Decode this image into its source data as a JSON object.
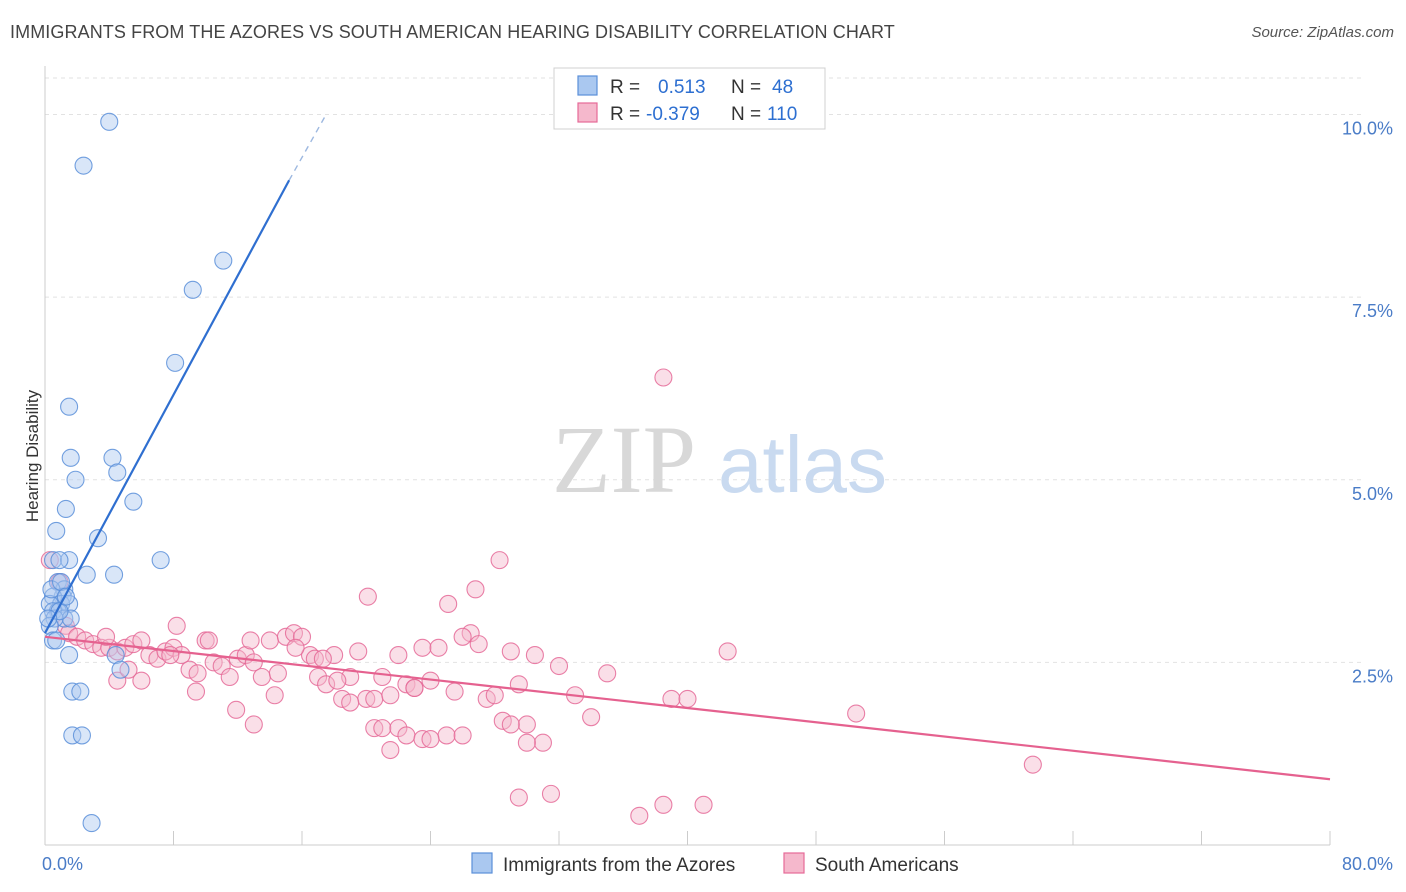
{
  "title": "IMMIGRANTS FROM THE AZORES VS SOUTH AMERICAN HEARING DISABILITY CORRELATION CHART",
  "source": "Source: ZipAtlas.com",
  "watermark": {
    "zip": "ZIP",
    "atlas": "atlas"
  },
  "colors": {
    "blue": "#5b8fd9",
    "blue_fill": "#aac8f0",
    "pink": "#e56a98",
    "pink_fill": "#f5b8cc",
    "tick": "#4a7cc7"
  },
  "legend": {
    "rows": [
      {
        "r_label": "R =",
        "r_value": "0.513",
        "n_label": "N =",
        "n_value": "48"
      },
      {
        "r_label": "R =",
        "r_value": "-0.379",
        "n_label": "N =",
        "n_value": "110"
      }
    ]
  },
  "bottom_legend": [
    "Immigrants from the Azores",
    "South Americans"
  ],
  "chart_data": {
    "type": "scatter",
    "title": "IMMIGRANTS FROM THE AZORES VS SOUTH AMERICAN HEARING DISABILITY CORRELATION CHART",
    "xlabel": "",
    "ylabel": "Hearing Disability",
    "xlim": [
      0,
      80
    ],
    "ylim": [
      0,
      10.5
    ],
    "x_tick_labels": [
      "0.0%",
      "80.0%"
    ],
    "y_ticks": [
      2.5,
      5.0,
      7.5,
      10.0
    ],
    "y_tick_labels": [
      "2.5%",
      "5.0%",
      "7.5%",
      "10.0%"
    ],
    "grid": "horizontal dashed",
    "legend_position": "top-center",
    "series": [
      {
        "name": "Immigrants from the Azores",
        "color": "#5b8fd9",
        "trend": {
          "x": [
            0.0,
            15.2
          ],
          "y": [
            2.9,
            9.1
          ],
          "dashed_to": [
            17.5,
            10.0
          ]
        },
        "points": [
          [
            4.0,
            9.9
          ],
          [
            2.4,
            9.3
          ],
          [
            11.1,
            8.0
          ],
          [
            9.2,
            7.6
          ],
          [
            8.1,
            6.6
          ],
          [
            1.5,
            6.0
          ],
          [
            1.6,
            5.3
          ],
          [
            4.2,
            5.3
          ],
          [
            1.9,
            5.0
          ],
          [
            4.5,
            5.1
          ],
          [
            1.3,
            4.6
          ],
          [
            5.5,
            4.7
          ],
          [
            0.7,
            4.3
          ],
          [
            3.3,
            4.2
          ],
          [
            7.2,
            3.9
          ],
          [
            0.5,
            3.9
          ],
          [
            1.5,
            3.9
          ],
          [
            0.9,
            3.9
          ],
          [
            2.6,
            3.7
          ],
          [
            4.3,
            3.7
          ],
          [
            0.8,
            3.6
          ],
          [
            1.2,
            3.5
          ],
          [
            1.1,
            3.4
          ],
          [
            0.5,
            3.4
          ],
          [
            1.0,
            3.3
          ],
          [
            1.5,
            3.3
          ],
          [
            0.3,
            3.3
          ],
          [
            0.8,
            3.2
          ],
          [
            0.5,
            3.2
          ],
          [
            1.2,
            3.1
          ],
          [
            1.6,
            3.1
          ],
          [
            0.6,
            3.1
          ],
          [
            0.9,
            3.2
          ],
          [
            0.3,
            3.0
          ],
          [
            0.5,
            2.8
          ],
          [
            0.7,
            2.8
          ],
          [
            4.4,
            2.6
          ],
          [
            1.5,
            2.6
          ],
          [
            4.7,
            2.4
          ],
          [
            1.7,
            2.1
          ],
          [
            2.2,
            2.1
          ],
          [
            1.7,
            1.5
          ],
          [
            2.3,
            1.5
          ],
          [
            2.9,
            0.3
          ],
          [
            0.4,
            3.5
          ],
          [
            0.2,
            3.1
          ],
          [
            1.0,
            3.6
          ],
          [
            1.3,
            3.4
          ]
        ]
      },
      {
        "name": "South Americans",
        "color": "#e56a98",
        "trend": {
          "x": [
            0.0,
            80.0
          ],
          "y": [
            2.85,
            0.9
          ]
        },
        "points": [
          [
            38.5,
            6.4
          ],
          [
            28.3,
            3.9
          ],
          [
            20.1,
            3.4
          ],
          [
            26.8,
            3.5
          ],
          [
            25.1,
            3.3
          ],
          [
            0.3,
            3.9
          ],
          [
            0.9,
            3.6
          ],
          [
            1.3,
            3.0
          ],
          [
            1.5,
            2.9
          ],
          [
            2.0,
            2.85
          ],
          [
            2.5,
            2.8
          ],
          [
            3.0,
            2.75
          ],
          [
            3.5,
            2.7
          ],
          [
            4.0,
            2.7
          ],
          [
            4.5,
            2.65
          ],
          [
            5.0,
            2.7
          ],
          [
            5.5,
            2.75
          ],
          [
            6.0,
            2.8
          ],
          [
            6.5,
            2.6
          ],
          [
            7.0,
            2.55
          ],
          [
            7.5,
            2.65
          ],
          [
            8.0,
            2.7
          ],
          [
            8.5,
            2.6
          ],
          [
            9.0,
            2.4
          ],
          [
            9.5,
            2.35
          ],
          [
            10.0,
            2.8
          ],
          [
            10.5,
            2.5
          ],
          [
            11.0,
            2.45
          ],
          [
            11.5,
            2.3
          ],
          [
            12.0,
            2.55
          ],
          [
            12.5,
            2.6
          ],
          [
            13.0,
            2.5
          ],
          [
            13.5,
            2.3
          ],
          [
            14.0,
            2.8
          ],
          [
            14.5,
            2.35
          ],
          [
            15.0,
            2.85
          ],
          [
            15.5,
            2.9
          ],
          [
            16.0,
            2.85
          ],
          [
            16.5,
            2.6
          ],
          [
            17.0,
            2.3
          ],
          [
            17.5,
            2.2
          ],
          [
            18.0,
            2.6
          ],
          [
            18.5,
            2.0
          ],
          [
            19.0,
            2.3
          ],
          [
            19.5,
            2.65
          ],
          [
            20.0,
            2.0
          ],
          [
            20.5,
            2.0
          ],
          [
            21.0,
            2.3
          ],
          [
            21.5,
            2.05
          ],
          [
            22.0,
            2.6
          ],
          [
            22.5,
            2.2
          ],
          [
            23.0,
            2.15
          ],
          [
            23.5,
            2.7
          ],
          [
            24.0,
            2.25
          ],
          [
            24.5,
            2.7
          ],
          [
            25.0,
            1.5
          ],
          [
            25.5,
            2.1
          ],
          [
            26.0,
            1.5
          ],
          [
            26.5,
            2.9
          ],
          [
            27.0,
            2.75
          ],
          [
            27.5,
            2.0
          ],
          [
            28.0,
            2.05
          ],
          [
            28.5,
            1.7
          ],
          [
            29.0,
            2.65
          ],
          [
            29.5,
            2.2
          ],
          [
            30.0,
            1.65
          ],
          [
            30.5,
            2.6
          ],
          [
            31.0,
            1.4
          ],
          [
            32.0,
            2.45
          ],
          [
            33.0,
            2.05
          ],
          [
            34.0,
            1.75
          ],
          [
            35.0,
            2.35
          ],
          [
            39.0,
            2.0
          ],
          [
            40.0,
            2.0
          ],
          [
            42.5,
            2.65
          ],
          [
            50.5,
            1.8
          ],
          [
            61.5,
            1.1
          ],
          [
            4.5,
            2.25
          ],
          [
            6.0,
            2.25
          ],
          [
            8.2,
            3.0
          ],
          [
            9.4,
            2.1
          ],
          [
            11.9,
            1.85
          ],
          [
            13.0,
            1.65
          ],
          [
            14.3,
            2.05
          ],
          [
            16.8,
            2.55
          ],
          [
            18.2,
            2.25
          ],
          [
            19.0,
            1.95
          ],
          [
            20.5,
            1.6
          ],
          [
            21.0,
            1.6
          ],
          [
            22.0,
            1.6
          ],
          [
            23.0,
            2.15
          ],
          [
            21.5,
            1.3
          ],
          [
            22.5,
            1.5
          ],
          [
            23.5,
            1.45
          ],
          [
            24.0,
            1.45
          ],
          [
            29.0,
            1.65
          ],
          [
            30.0,
            1.4
          ],
          [
            29.5,
            0.65
          ],
          [
            31.5,
            0.7
          ],
          [
            37.0,
            0.4
          ],
          [
            38.5,
            0.55
          ],
          [
            41.0,
            0.55
          ],
          [
            3.8,
            2.85
          ],
          [
            5.2,
            2.4
          ],
          [
            7.8,
            2.6
          ],
          [
            10.2,
            2.8
          ],
          [
            12.8,
            2.8
          ],
          [
            15.6,
            2.7
          ],
          [
            17.3,
            2.55
          ],
          [
            26.0,
            2.85
          ]
        ]
      }
    ]
  }
}
